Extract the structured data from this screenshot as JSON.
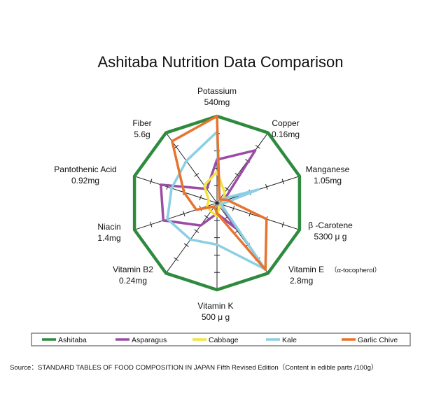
{
  "chart_data": {
    "type": "radar",
    "title": "Ashitaba Nutrition Data Comparison",
    "axes": [
      {
        "name": "Potassium",
        "max": "540mg"
      },
      {
        "name": "Copper",
        "max": "0.16mg"
      },
      {
        "name": "Manganese",
        "max": "1.05mg"
      },
      {
        "name": "β -Carotene",
        "max": "5300 μ g"
      },
      {
        "name": "Vitamin E",
        "note": "（α-tocopherol）",
        "max": "2.8mg"
      },
      {
        "name": "Vitamin K",
        "max": "500 μ g"
      },
      {
        "name": "Vitamin B2",
        "max": "0.24mg"
      },
      {
        "name": "Niacin",
        "max": "1.4mg"
      },
      {
        "name": "Pantothenic Acid",
        "max": "0.92mg"
      },
      {
        "name": "Fiber",
        "max": "5.6g"
      }
    ],
    "range": [
      0,
      100
    ],
    "series": [
      {
        "name": "Ashitaba",
        "color": "#2e8b3e",
        "values": [
          100,
          100,
          100,
          100,
          100,
          100,
          100,
          100,
          100,
          100
        ]
      },
      {
        "name": "Asparagus",
        "color": "#9b4da5",
        "values": [
          50,
          75,
          8,
          5,
          35,
          12,
          32,
          65,
          68,
          20
        ]
      },
      {
        "name": "Cabbage",
        "color": "#f1e53e",
        "values": [
          36,
          15,
          8,
          5,
          5,
          15,
          12,
          12,
          10,
          25
        ]
      },
      {
        "name": "Kale",
        "color": "#8ccfe4",
        "values": [
          82,
          5,
          50,
          5,
          94,
          48,
          52,
          60,
          55,
          60
        ]
      },
      {
        "name": "Garlic Chive",
        "color": "#e8732f",
        "values": [
          100,
          5,
          12,
          60,
          95,
          12,
          5,
          25,
          40,
          88
        ]
      }
    ]
  },
  "source": "Source：STANDARD TABLES OF FOOD COMPOSITION IN JAPAN Fifth Revised Edition（Content in edible parts /100g）"
}
